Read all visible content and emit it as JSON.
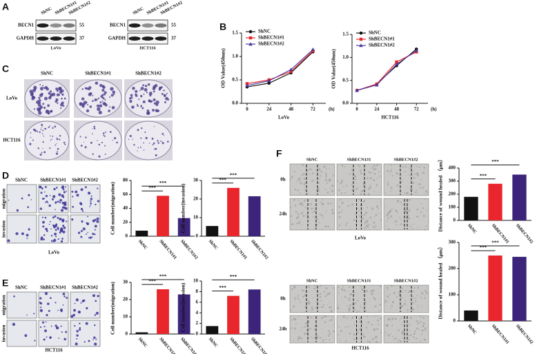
{
  "blot_panel": {
    "label": "A",
    "blots": [
      {
        "columns": [
          "ShNC",
          "ShBECN1#1",
          "ShBECN1#2"
        ],
        "rows": [
          "BECN1",
          "GAPDH"
        ],
        "weights": [
          55,
          37
        ],
        "caption": "LoVo"
      },
      {
        "columns": [
          "ShNC",
          "ShBECN1#1",
          "ShBECN1#2"
        ],
        "rows": [
          "BECN1",
          "GAPDH"
        ],
        "weights": [
          55,
          37
        ],
        "caption": "HCT116"
      }
    ]
  },
  "line_panel": {
    "label": "B"
  },
  "colony_panel": {
    "label": "C",
    "columns": [
      "ShNC",
      "ShBECN1#1",
      "ShBECN1#2"
    ],
    "rows": [
      "LoVo",
      "HCT116"
    ]
  },
  "transwell_panels": [
    {
      "label": "D",
      "columns": [
        "ShNC",
        "ShBECN1#1",
        "ShBECN1#2"
      ],
      "rows": [
        "migration",
        "invasion"
      ],
      "caption": "LoVo"
    },
    {
      "label": "E",
      "columns": [
        "ShNC",
        "ShBECN1#1",
        "ShBECN1#2"
      ],
      "rows": [
        "migration",
        "invasion"
      ],
      "caption": "HCT116"
    }
  ],
  "wound_panel": {
    "label": "F",
    "blocks": [
      {
        "columns": [
          "ShNC",
          "ShBECN1#1",
          "ShBECN1#2"
        ],
        "rows": [
          "0h",
          "24h"
        ],
        "caption": "LoVo"
      },
      {
        "columns": [
          "ShNC",
          "ShBECN1#1",
          "ShBECN1#2"
        ],
        "rows": [
          "0h",
          "24h"
        ],
        "caption": "HCT116"
      }
    ]
  },
  "chart_data": [
    {
      "type": "line",
      "ylabel": "OD Value(450nm)",
      "xlabel": "LoVo",
      "x_unit": "(h)",
      "x": [
        0,
        24,
        48,
        72
      ],
      "xlim": [
        -6,
        86
      ],
      "xticks": [
        0,
        24,
        48,
        72
      ],
      "ylim": [
        0,
        1.5
      ],
      "yticks": [
        {
          "value": 0,
          "label": "0.0"
        },
        0.5,
        {
          "value": 1,
          "label": "1.0"
        },
        1.5
      ],
      "legend": "upper left",
      "series": [
        {
          "name": "ShNC",
          "color": "#111111",
          "marker": "circle",
          "values": [
            0.35,
            0.43,
            0.65,
            1.1
          ]
        },
        {
          "name": "ShBECN1#1",
          "color": "#e8262b",
          "marker": "square",
          "values": [
            0.42,
            0.5,
            0.68,
            1.12
          ]
        },
        {
          "name": "ShBECN1#2",
          "color": "#4b3aa0",
          "marker": "triangle",
          "values": [
            0.38,
            0.48,
            0.72,
            1.15
          ]
        }
      ]
    },
    {
      "type": "line",
      "ylabel": "OD Value(450nm)",
      "xlabel": "HCT116",
      "x_unit": "(h)",
      "x": [
        0,
        24,
        48,
        72
      ],
      "xlim": [
        -6,
        86
      ],
      "xticks": [
        0,
        24,
        48,
        72
      ],
      "ylim": [
        0,
        1.5
      ],
      "yticks": [
        {
          "value": 0,
          "label": "0.0"
        },
        0.5,
        {
          "value": 1,
          "label": "1.0"
        },
        1.5
      ],
      "legend": "upper left",
      "series": [
        {
          "name": "ShNC",
          "color": "#111111",
          "marker": "circle",
          "values": [
            0.28,
            0.42,
            0.82,
            1.18
          ]
        },
        {
          "name": "ShBECN1#1",
          "color": "#e8262b",
          "marker": "square",
          "values": [
            0.28,
            0.42,
            0.9,
            1.12
          ]
        },
        {
          "name": "ShBECN1#2",
          "color": "#4b3aa0",
          "marker": "triangle",
          "values": [
            0.28,
            0.4,
            0.85,
            1.15
          ]
        }
      ]
    },
    {
      "type": "bar",
      "ylabel": "Cell number(migration)",
      "categories": [
        "ShNC",
        "ShBECN1#1",
        "ShBECN1#2"
      ],
      "values": [
        8,
        58,
        26
      ],
      "colors": [
        "#111111",
        "#e8262b",
        "#3b2479"
      ],
      "ylim": [
        0,
        80
      ],
      "yticks": [
        0,
        20,
        40,
        60,
        80
      ],
      "annotations": [
        "***",
        "***"
      ]
    },
    {
      "type": "bar",
      "ylabel": "Cell number(invasion)",
      "categories": [
        "ShNC",
        "ShBECN1#1",
        "ShBECN1#2"
      ],
      "values": [
        5.5,
        26,
        21.5
      ],
      "colors": [
        "#111111",
        "#e8262b",
        "#3b2479"
      ],
      "ylim": [
        0,
        30
      ],
      "yticks": [
        0,
        10,
        20,
        30
      ],
      "annotations": [
        "***",
        "***"
      ]
    },
    {
      "type": "bar",
      "ylabel": "Cell number(migration)",
      "categories": [
        "ShNC",
        "ShBECN1#1",
        "ShBECN1#2"
      ],
      "values": [
        1,
        26,
        23
      ],
      "colors": [
        "#111111",
        "#e8262b",
        "#3b2479"
      ],
      "ylim": [
        0,
        30
      ],
      "yticks": [
        0,
        10,
        20,
        30
      ],
      "annotations": [
        "***",
        "***"
      ]
    },
    {
      "type": "bar",
      "ylabel": "Cell number(invasion)",
      "categories": [
        "ShNC",
        "ShBECN1#1",
        "ShBECN1#2"
      ],
      "values": [
        1.5,
        7.2,
        8.4
      ],
      "colors": [
        "#111111",
        "#e8262b",
        "#3b2479"
      ],
      "ylim": [
        0,
        10
      ],
      "yticks": [
        0,
        2,
        4,
        6,
        8,
        10
      ],
      "annotations": [
        "***",
        "***"
      ]
    },
    {
      "type": "bar",
      "ylabel": "Distance of wound healed （μm）",
      "categories": [
        "ShNC",
        "ShBECN1#1",
        "ShBECN1#2"
      ],
      "values": [
        180,
        280,
        350
      ],
      "colors": [
        "#111111",
        "#e8262b",
        "#3b2479"
      ],
      "ylim": [
        0,
        400
      ],
      "yticks": [
        0,
        100,
        200,
        300,
        400
      ],
      "annotations": [
        "***",
        "***"
      ]
    },
    {
      "type": "bar",
      "ylabel": "Distance of wound healed （μm）",
      "categories": [
        "ShNC",
        "ShBECN1#1",
        "ShBECN1#2"
      ],
      "values": [
        40,
        250,
        245
      ],
      "colors": [
        "#111111",
        "#e8262b",
        "#3b2479"
      ],
      "ylim": [
        0,
        300
      ],
      "yticks": [
        0,
        100,
        200,
        300
      ],
      "annotations": [
        "***",
        "***"
      ]
    }
  ]
}
